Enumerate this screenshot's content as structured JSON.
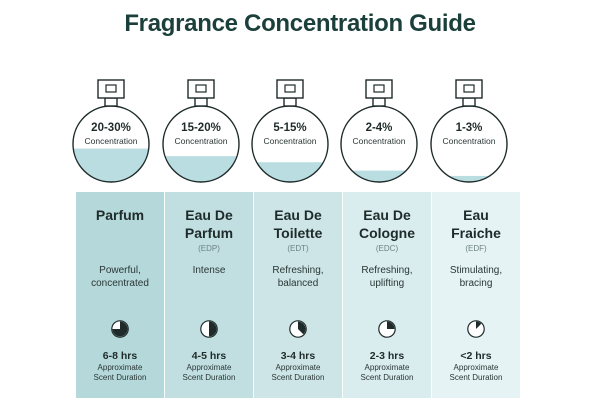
{
  "title": "Fragrance Concentration Guide",
  "colors": {
    "liquid": "#b9dde0",
    "outline": "#1e2b2a",
    "columns": [
      "#b5d8da",
      "#c1dfe1",
      "#cde5e7",
      "#d9ecee",
      "#e6f3f4"
    ]
  },
  "icons": {
    "bottle": "perfume-bottle-icon",
    "duration": "clock-icon"
  },
  "concentration_label": "Concentration",
  "duration_label_line1": "Approximate",
  "duration_label_line2": "Scent Duration",
  "types": [
    {
      "concentration": "20-30%",
      "fill_fraction": 0.44,
      "name_line1": "Parfum",
      "name_line2": "",
      "abbr": "",
      "desc_line1": "Powerful,",
      "desc_line2": "concentrated",
      "duration": "6-8 hrs",
      "clock_fraction": 0.75
    },
    {
      "concentration": "15-20%",
      "fill_fraction": 0.34,
      "name_line1": "Eau De",
      "name_line2": "Parfum",
      "abbr": "(EDP)",
      "desc_line1": "Intense",
      "desc_line2": "",
      "duration": "4-5 hrs",
      "clock_fraction": 0.5
    },
    {
      "concentration": "5-15%",
      "fill_fraction": 0.26,
      "name_line1": "Eau De",
      "name_line2": "Toilette",
      "abbr": "(EDT)",
      "desc_line1": "Refreshing,",
      "desc_line2": "balanced",
      "duration": "3-4 hrs",
      "clock_fraction": 0.375
    },
    {
      "concentration": "2-4%",
      "fill_fraction": 0.15,
      "name_line1": "Eau De",
      "name_line2": "Cologne",
      "abbr": "(EDC)",
      "desc_line1": "Refreshing,",
      "desc_line2": "uplifting",
      "duration": "2-3 hrs",
      "clock_fraction": 0.25
    },
    {
      "concentration": "1-3%",
      "fill_fraction": 0.08,
      "name_line1": "Eau",
      "name_line2": "Fraiche",
      "abbr": "(EDF)",
      "desc_line1": "Stimulating,",
      "desc_line2": "bracing",
      "duration": "<2 hrs",
      "clock_fraction": 0.125
    }
  ]
}
